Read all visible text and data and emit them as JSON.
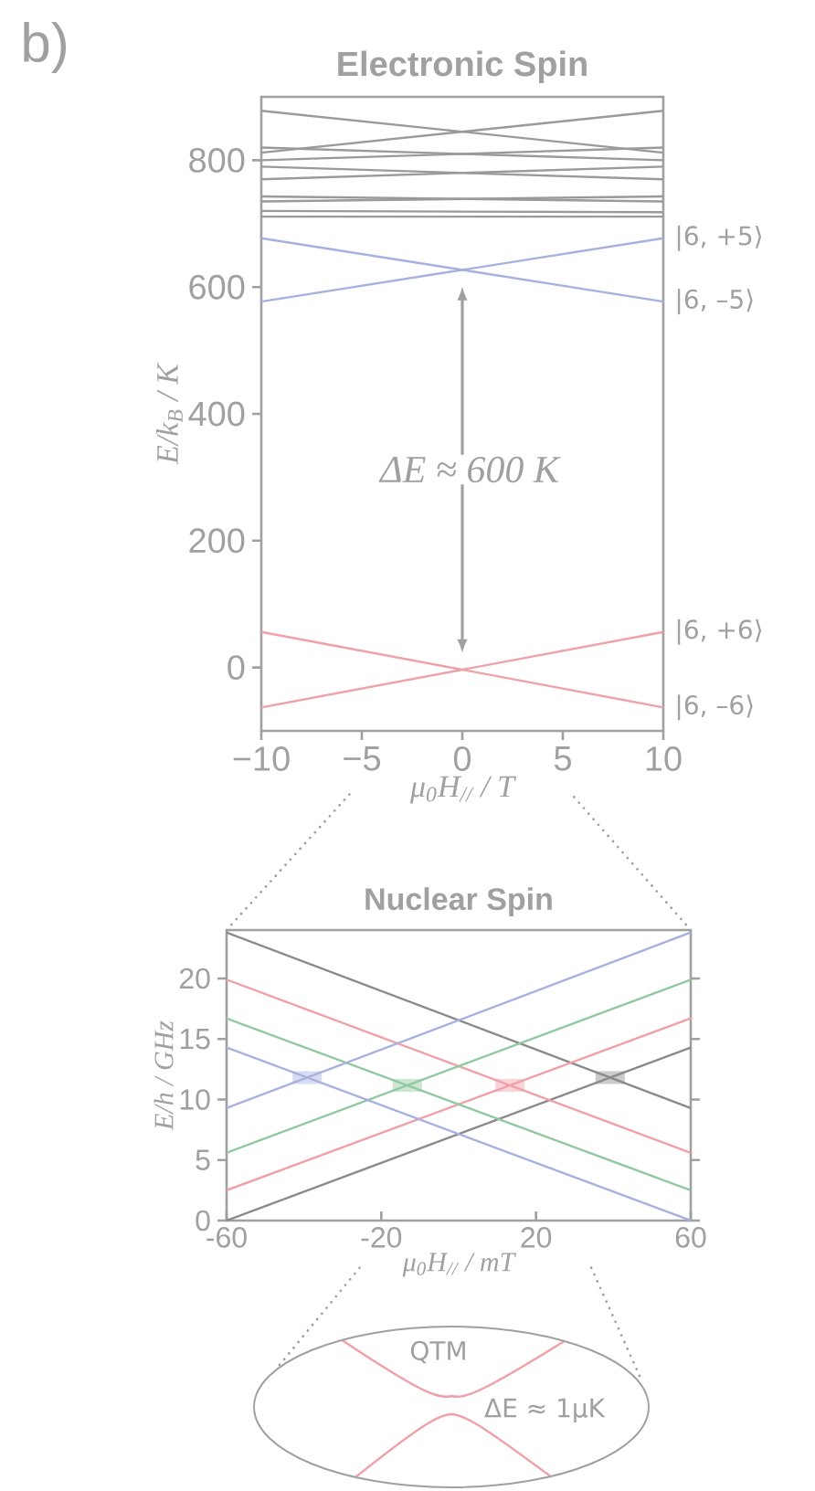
{
  "chart_data": [
    {
      "type": "line",
      "title": "Electronic Spin",
      "xlabel": "μ$_{0}$H$_{//}$ / T",
      "ylabel": "E/k$_{B}$ / K",
      "xlim": [
        -10,
        10
      ],
      "ylim": [
        -100,
        900
      ],
      "xticks": [
        {
          "value": -10,
          "label": "−10"
        },
        {
          "value": -5,
          "label": "−5"
        },
        0,
        5,
        10
      ],
      "yticks": [
        0,
        200,
        400,
        600,
        800
      ],
      "x": [
        -10,
        10
      ],
      "series": [
        {
          "name": "|6, –6⟩",
          "color": "#f0a0a8",
          "values": [
            56,
            -63
          ]
        },
        {
          "name": "|6, +6⟩",
          "color": "#f0a0a8",
          "values": [
            -63,
            56
          ]
        },
        {
          "name": "|6, –5⟩",
          "color": "#a8b0e0",
          "values": [
            677,
            577
          ]
        },
        {
          "name": "|6, +5⟩",
          "color": "#a8b0e0",
          "values": [
            577,
            677
          ]
        },
        {
          "color": "#9a9a9a",
          "values": [
            878,
            812
          ]
        },
        {
          "color": "#9a9a9a",
          "values": [
            812,
            878
          ]
        },
        {
          "color": "#9a9a9a",
          "values": [
            820,
            800
          ]
        },
        {
          "color": "#9a9a9a",
          "values": [
            800,
            820
          ]
        },
        {
          "color": "#9a9a9a",
          "values": [
            790,
            770
          ]
        },
        {
          "color": "#9a9a9a",
          "values": [
            770,
            790
          ]
        },
        {
          "color": "#9a9a9a",
          "values": [
            743,
            735
          ]
        },
        {
          "color": "#9a9a9a",
          "values": [
            735,
            743
          ]
        },
        {
          "color": "#9a9a9a",
          "values": [
            720,
            718
          ]
        },
        {
          "color": "#9a9a9a",
          "values": [
            711,
            711
          ]
        }
      ],
      "annotations": [
        "b)",
        "ΔE ≈ 600 K"
      ]
    },
    {
      "type": "line",
      "title": "Nuclear Spin",
      "xlabel": "μ$_{0}$H$_{//}$ / mT",
      "ylabel": "E/h / GHz",
      "xlim": [
        -60,
        60
      ],
      "ylim": [
        0,
        24
      ],
      "xticks": [
        -60,
        -20,
        20,
        60
      ],
      "yticks": [
        0,
        5,
        10,
        15,
        20
      ],
      "x": [
        -60,
        60
      ],
      "series": [
        {
          "color": "#8a8a8a",
          "values": [
            23.8,
            9.3
          ]
        },
        {
          "color": "#8a8a8a",
          "values": [
            0,
            14.3
          ]
        },
        {
          "color": "#f0a0a8",
          "values": [
            19.9,
            5.6
          ]
        },
        {
          "color": "#f0a0a8",
          "values": [
            2.5,
            16.7
          ]
        },
        {
          "color": "#90c8a0",
          "values": [
            16.7,
            2.5
          ]
        },
        {
          "color": "#90c8a0",
          "values": [
            5.6,
            19.9
          ]
        },
        {
          "color": "#a8b0e0",
          "values": [
            14.3,
            0
          ]
        },
        {
          "color": "#a8b0e0",
          "values": [
            9.3,
            23.8
          ]
        }
      ],
      "annotations": [
        "QTM",
        "ΔE ≈ 1μK"
      ]
    }
  ]
}
